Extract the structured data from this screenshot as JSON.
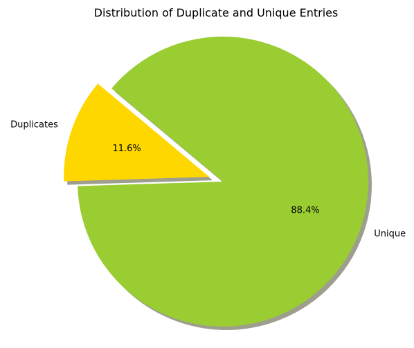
{
  "chart_data": {
    "type": "pie",
    "title": "Distribution of Duplicate and Unique Entries",
    "slices": [
      {
        "label": "Duplicates",
        "value": 11.6,
        "pct_label": "11.6%",
        "color": "#FFD700",
        "explode": true
      },
      {
        "label": "Unique",
        "value": 88.4,
        "pct_label": "88.4%",
        "color": "#9ACD32",
        "explode": false
      }
    ],
    "shadow": true,
    "start_angle_deg": 140
  }
}
